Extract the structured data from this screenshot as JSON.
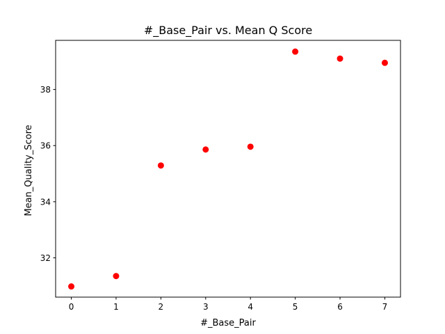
{
  "chart_data": {
    "type": "scatter",
    "title": "#_Base_Pair vs. Mean Q Score",
    "xlabel": "#_Base_Pair",
    "ylabel": "Mean_Quality_Score",
    "xlim": [
      -0.35,
      7.35
    ],
    "ylim": [
      30.6,
      39.75
    ],
    "xticks": [
      0,
      1,
      2,
      3,
      4,
      5,
      6,
      7
    ],
    "yticks": [
      32,
      34,
      36,
      38
    ],
    "grid": false,
    "marker_color": "#ff0000",
    "points": [
      {
        "x": 0,
        "y": 30.98
      },
      {
        "x": 1,
        "y": 31.35
      },
      {
        "x": 2,
        "y": 35.29
      },
      {
        "x": 3,
        "y": 35.86
      },
      {
        "x": 4,
        "y": 35.96
      },
      {
        "x": 5,
        "y": 39.35
      },
      {
        "x": 6,
        "y": 39.1
      },
      {
        "x": 7,
        "y": 38.95
      }
    ]
  }
}
